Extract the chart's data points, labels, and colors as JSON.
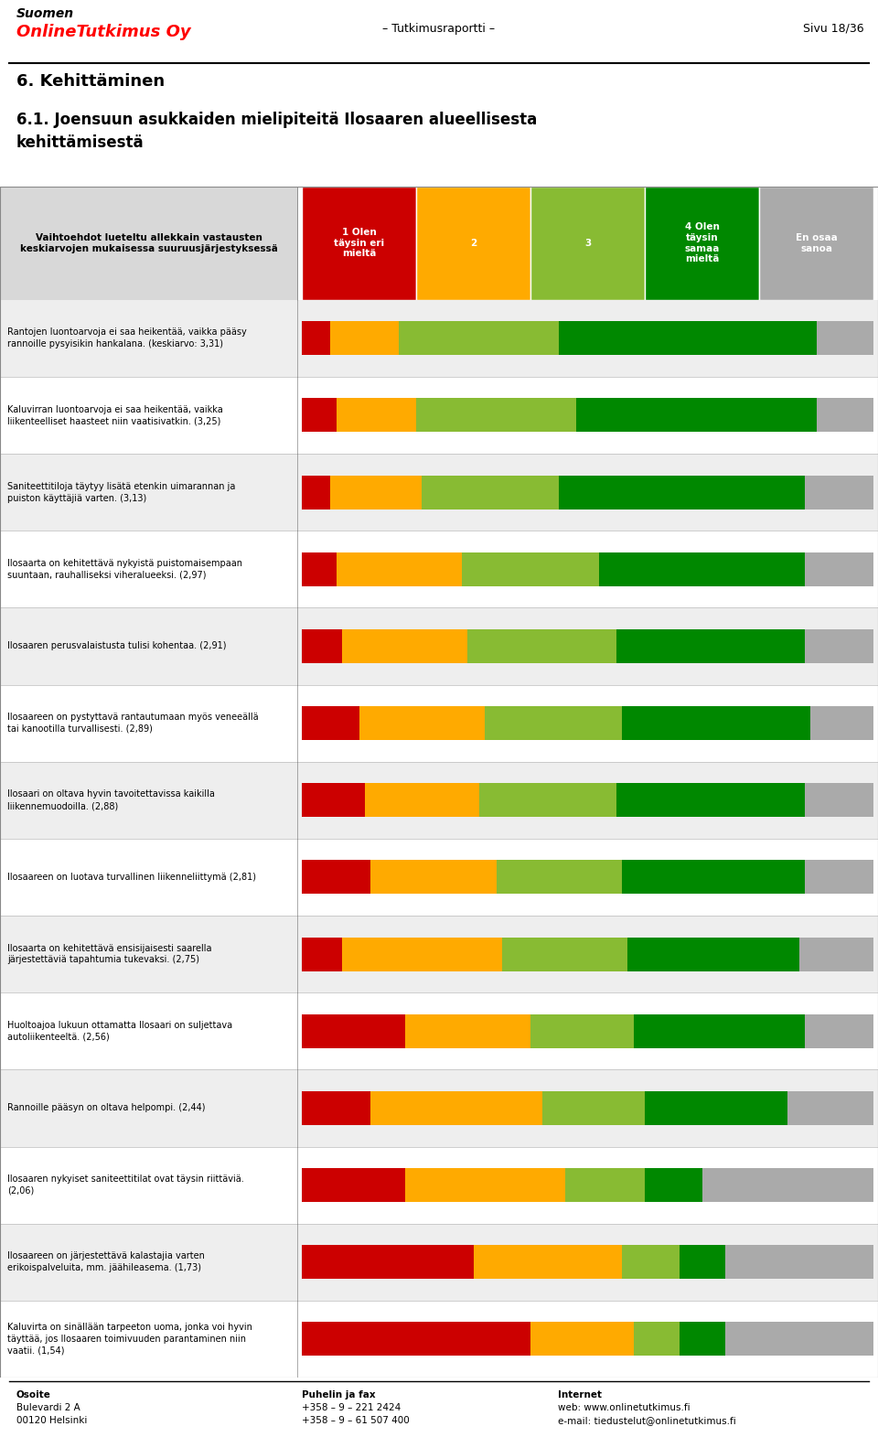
{
  "section_title": "6. Kehittäminen",
  "header_left1": "Suomen",
  "header_left2": "OnlineTutkimus Oy",
  "header_center": "– Tutkimusraportti –",
  "header_right": "Sivu 18/36",
  "main_title": "6.1. Joensuun asukkaiden mielipiteitä Ilosaaren alueellisesta\nkehittämisestä",
  "table_header_left": "Vaihtoehdot lueteltu allekkain vastausten\nkeskiarvojen mukaisessa suuruusjärjestyksessä",
  "col_headers": [
    "1 Olen\ntäysin eri\nmieltä",
    "2",
    "3",
    "4 Olen\ntäysin\nsamaa\nmieltä",
    "En osaa\nsanoa"
  ],
  "col_colors": [
    "#cc0000",
    "#ffaa00",
    "#88bb33",
    "#008800",
    "#aaaaaa"
  ],
  "rows": [
    {
      "label": "Rantojen luontoarvoja ei saa heikentää, vaikka pääsy\nrannoille pysyisikin hankalana. (keskiarvo: 3,31)",
      "values": [
        5,
        12,
        28,
        45,
        10
      ]
    },
    {
      "label": "Kaluvirran luontoarvoja ei saa heikentää, vaikka\nliikenteelliset haasteet niin vaatisivatkin. (3,25)",
      "values": [
        6,
        14,
        28,
        42,
        10
      ]
    },
    {
      "label": "Saniteettitiloja täytyy lisätä etenkin uimarannan ja\npuiston käyttäjiä varten. (3,13)",
      "values": [
        5,
        16,
        24,
        43,
        12
      ]
    },
    {
      "label": "Ilosaarta on kehitettävä nykyistä puistomaisempaan\nsuuntaan, rauhalliseksi viheralueeksi. (2,97)",
      "values": [
        6,
        22,
        24,
        36,
        12
      ]
    },
    {
      "label": "Ilosaaren perusvalaistusta tulisi kohentaa. (2,91)",
      "values": [
        7,
        22,
        26,
        33,
        12
      ]
    },
    {
      "label": "Ilosaareen on pystyttavä rantautumaan myös veneeällä\ntai kanootilla turvallisesti. (2,89)",
      "values": [
        10,
        22,
        24,
        33,
        11
      ]
    },
    {
      "label": "Ilosaari on oltava hyvin tavoitettavissa kaikilla\nliikennemuodoilla. (2,88)",
      "values": [
        11,
        20,
        24,
        33,
        12
      ]
    },
    {
      "label": "Ilosaareen on luotava turvallinen liikenneliittymä (2,81)",
      "values": [
        12,
        22,
        22,
        32,
        12
      ]
    },
    {
      "label": "Ilosaarta on kehitettävä ensisijaisesti saarella\njärjestettäviä tapahtumia tukevaksi. (2,75)",
      "values": [
        7,
        28,
        22,
        30,
        13
      ]
    },
    {
      "label": "Huoltoajoa lukuun ottamatta Ilosaari on suljettava\nautoliikenteeltä. (2,56)",
      "values": [
        18,
        22,
        18,
        30,
        12
      ]
    },
    {
      "label": "Rannoille pääsyn on oltava helpompi. (2,44)",
      "values": [
        12,
        30,
        18,
        25,
        15
      ]
    },
    {
      "label": "Ilosaaren nykyiset saniteettitilat ovat täysin riittäviä.\n(2,06)",
      "values": [
        18,
        28,
        14,
        10,
        30
      ]
    },
    {
      "label": "Ilosaareen on järjestettävä kalastajia varten\nerikoispalveluita, mm. jäähileasema. (1,73)",
      "values": [
        30,
        26,
        10,
        8,
        26
      ]
    },
    {
      "label": "Kaluvirta on sinällään tarpeeton uoma, jonka voi hyvin\ntäyttää, jos Ilosaaren toimivuuden parantaminen niin\nvaatii. (1,54)",
      "values": [
        40,
        18,
        8,
        8,
        26
      ]
    }
  ],
  "footer_left": [
    "Osoite",
    "Bulevardi 2 A",
    "00120 Helsinki"
  ],
  "footer_center": [
    "Puhelin ja fax",
    "+358 – 9 – 221 2424",
    "+358 – 9 – 61 507 400"
  ],
  "footer_right": [
    "Internet",
    "web: www.onlinetutkimus.fi",
    "e-mail: tiedustelut@onlinetutkimus.fi"
  ]
}
